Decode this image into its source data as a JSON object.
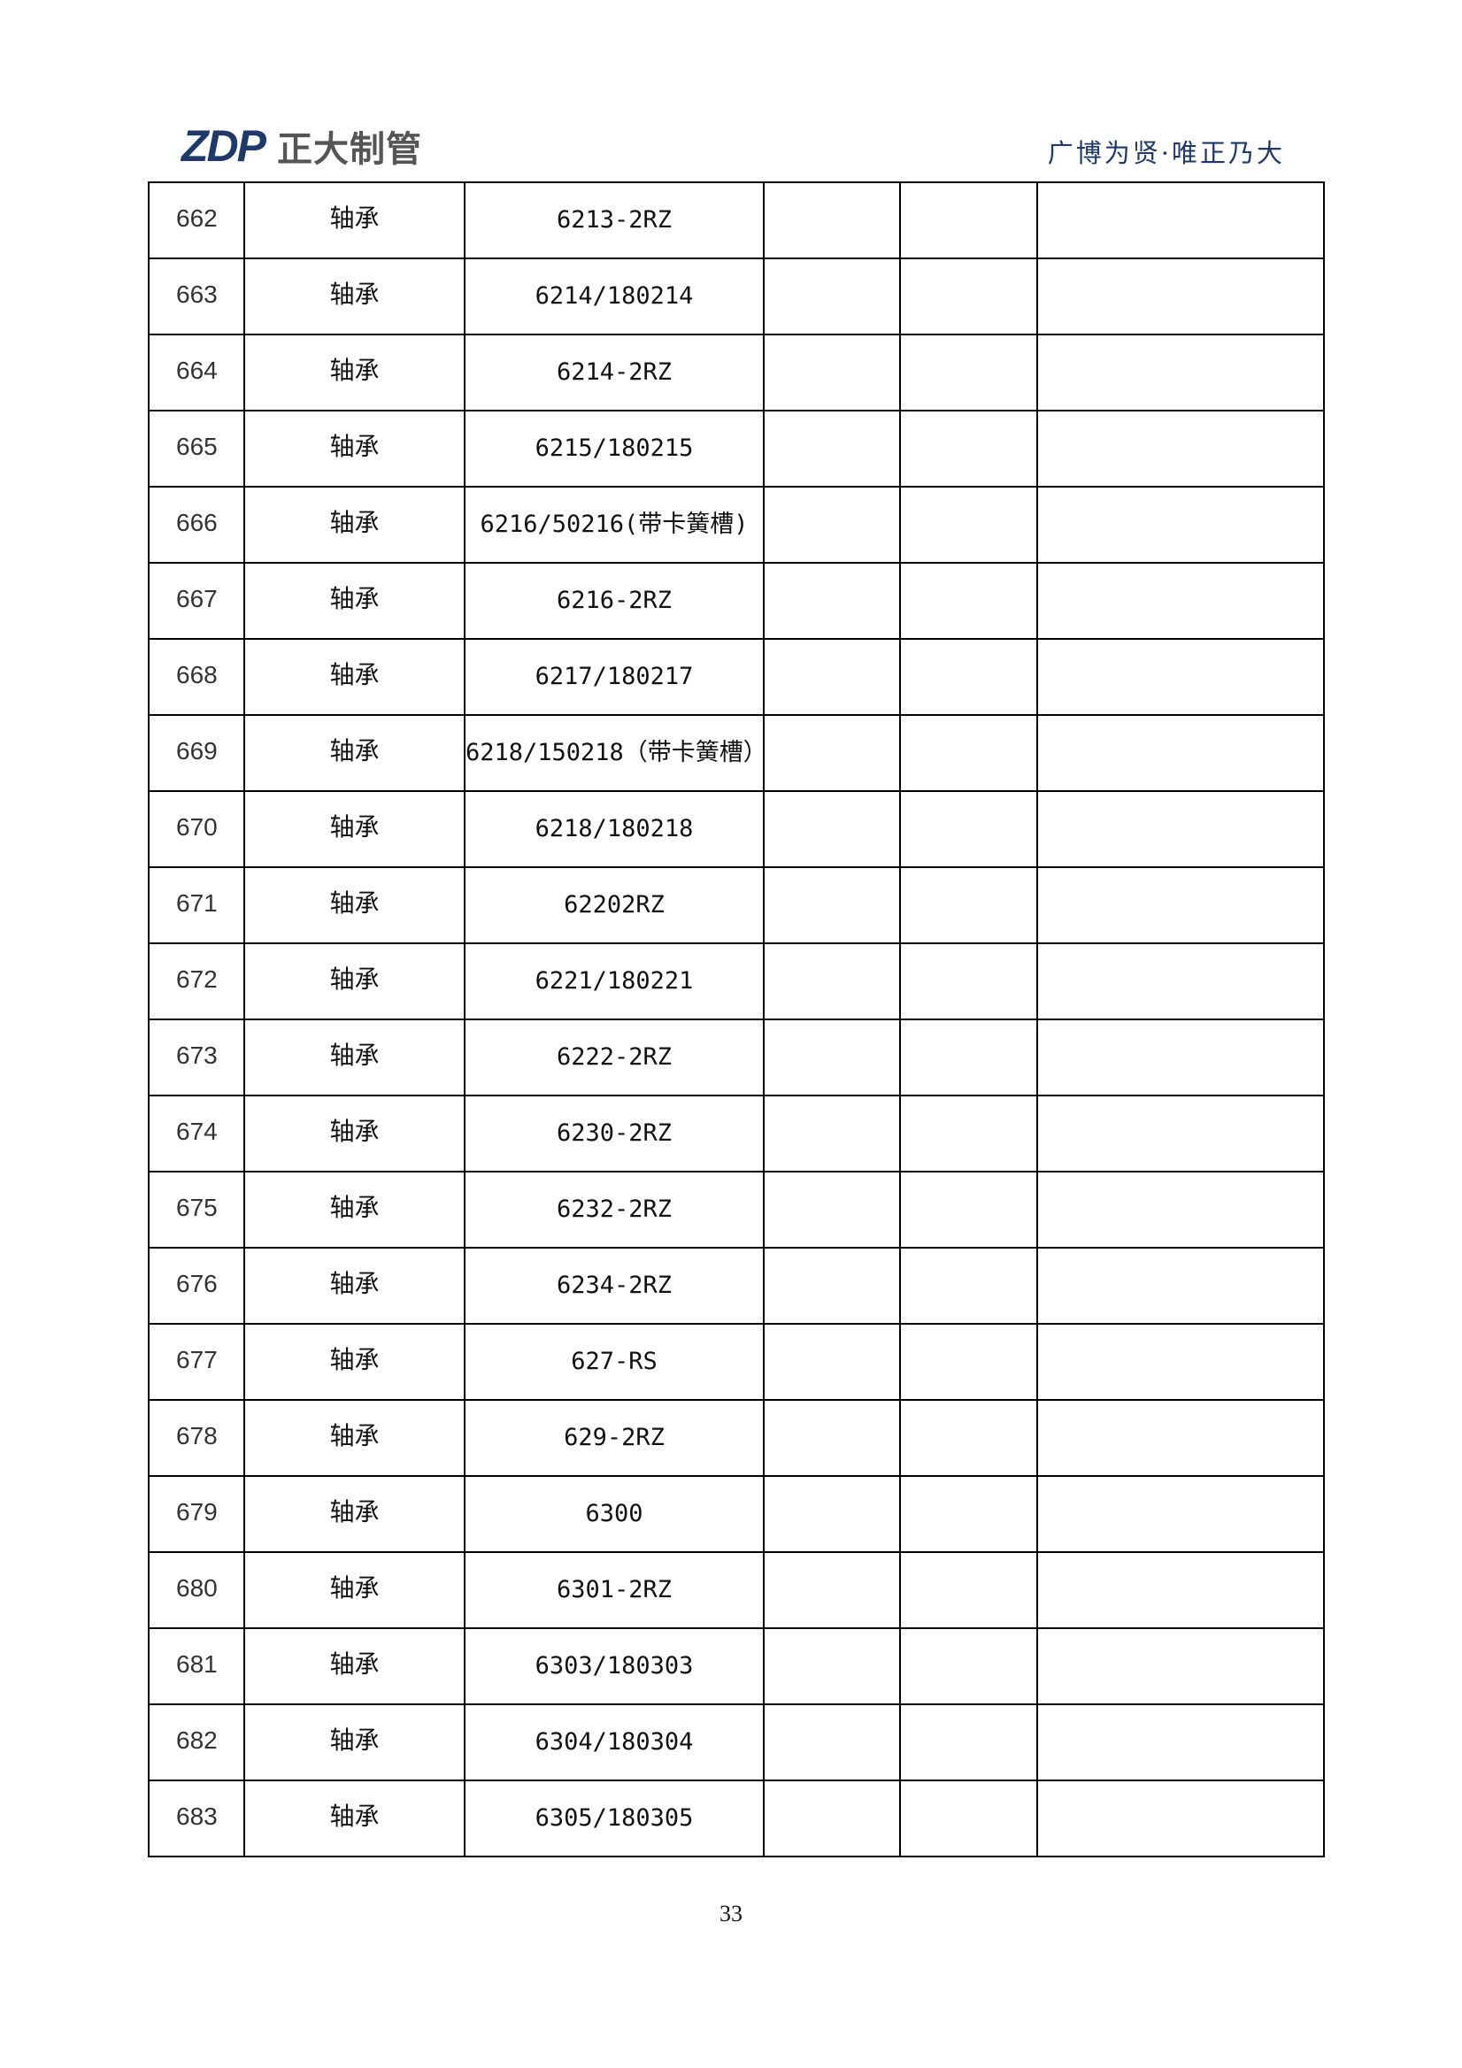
{
  "header": {
    "logo_mark": "ZDP",
    "logo_text": "正大制管",
    "tagline": "广博为贤·唯正乃大"
  },
  "table": {
    "rows": [
      {
        "no": "662",
        "name": "轴承",
        "model": "6213-2RZ"
      },
      {
        "no": "663",
        "name": "轴承",
        "model": "6214/180214"
      },
      {
        "no": "664",
        "name": "轴承",
        "model": "6214-2RZ"
      },
      {
        "no": "665",
        "name": "轴承",
        "model": "6215/180215"
      },
      {
        "no": "666",
        "name": "轴承",
        "model": "6216/50216(带卡簧槽)"
      },
      {
        "no": "667",
        "name": "轴承",
        "model": "6216-2RZ"
      },
      {
        "no": "668",
        "name": "轴承",
        "model": "6217/180217"
      },
      {
        "no": "669",
        "name": "轴承",
        "model": "6218/150218（带卡簧槽）"
      },
      {
        "no": "670",
        "name": "轴承",
        "model": "6218/180218"
      },
      {
        "no": "671",
        "name": "轴承",
        "model": "62202RZ"
      },
      {
        "no": "672",
        "name": "轴承",
        "model": "6221/180221"
      },
      {
        "no": "673",
        "name": "轴承",
        "model": "6222-2RZ"
      },
      {
        "no": "674",
        "name": "轴承",
        "model": "6230-2RZ"
      },
      {
        "no": "675",
        "name": "轴承",
        "model": "6232-2RZ"
      },
      {
        "no": "676",
        "name": "轴承",
        "model": "6234-2RZ"
      },
      {
        "no": "677",
        "name": "轴承",
        "model": "627-RS"
      },
      {
        "no": "678",
        "name": "轴承",
        "model": "629-2RZ"
      },
      {
        "no": "679",
        "name": "轴承",
        "model": "6300"
      },
      {
        "no": "680",
        "name": "轴承",
        "model": "6301-2RZ"
      },
      {
        "no": "681",
        "name": "轴承",
        "model": "6303/180303"
      },
      {
        "no": "682",
        "name": "轴承",
        "model": "6304/180304"
      },
      {
        "no": "683",
        "name": "轴承",
        "model": "6305/180305"
      }
    ]
  },
  "footer": {
    "page_number": "33"
  }
}
